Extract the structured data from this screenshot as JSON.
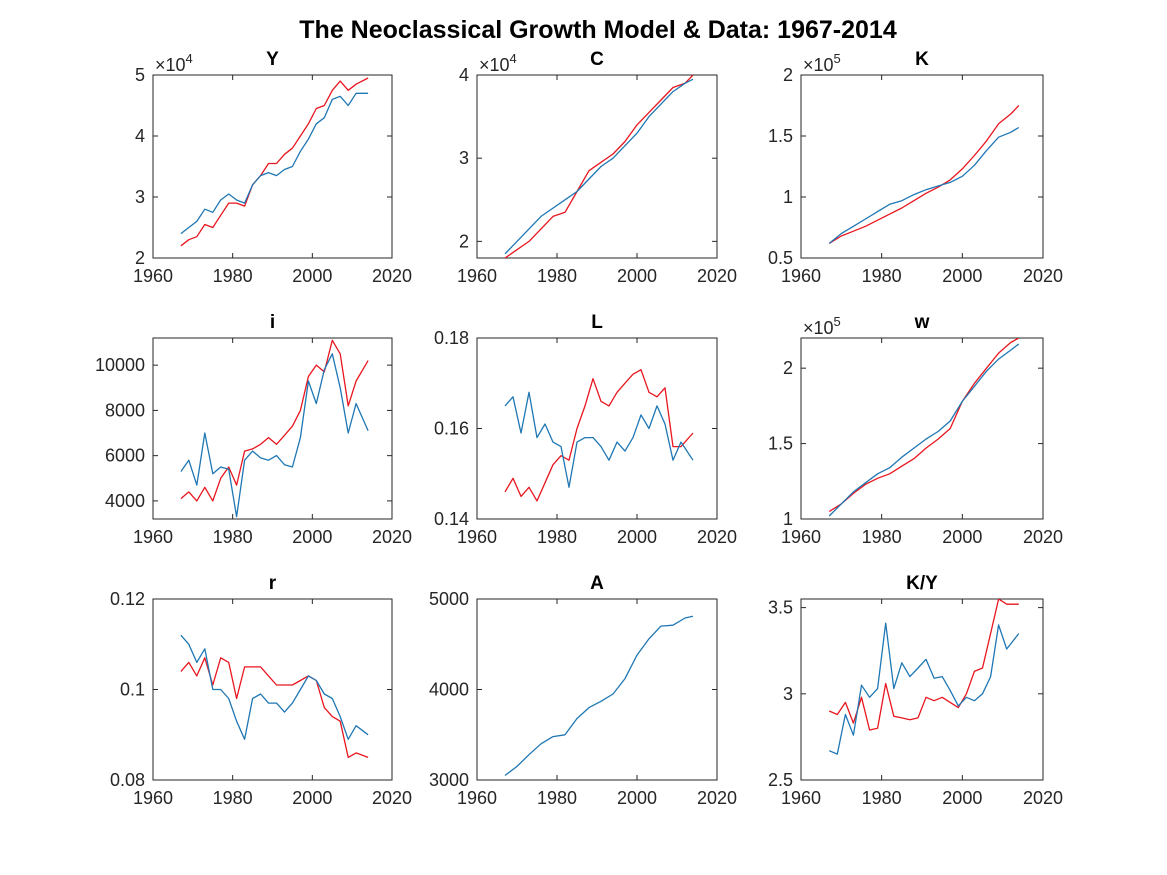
{
  "figure": {
    "title": "The Neoclassical Growth Model & Data: 1967-2014",
    "colors": {
      "model": "#e8161e",
      "data": "#1f77b4",
      "axis": "#262626"
    }
  },
  "chart_data": [
    {
      "type": "line",
      "title": "Y",
      "exponent": "4",
      "xlim": [
        1960,
        2020
      ],
      "ylim": [
        2,
        5
      ],
      "xticks": [
        "1960",
        "1980",
        "2000",
        "2020"
      ],
      "yticks": [
        "2",
        "3",
        "4",
        "5"
      ],
      "x": [
        1967,
        1969,
        1971,
        1973,
        1975,
        1977,
        1979,
        1981,
        1983,
        1985,
        1987,
        1989,
        1991,
        1993,
        1995,
        1997,
        1999,
        2001,
        2003,
        2005,
        2007,
        2009,
        2011,
        2014
      ],
      "series": [
        {
          "color": "#e8161e",
          "values": [
            2.2,
            2.3,
            2.35,
            2.55,
            2.5,
            2.7,
            2.9,
            2.9,
            2.85,
            3.2,
            3.35,
            3.55,
            3.55,
            3.7,
            3.8,
            4.0,
            4.2,
            4.45,
            4.5,
            4.75,
            4.9,
            4.75,
            4.85,
            4.95
          ]
        },
        {
          "color": "#1f77b4",
          "values": [
            2.4,
            2.5,
            2.6,
            2.8,
            2.75,
            2.95,
            3.05,
            2.95,
            2.9,
            3.2,
            3.35,
            3.4,
            3.35,
            3.45,
            3.5,
            3.75,
            3.95,
            4.2,
            4.3,
            4.6,
            4.65,
            4.5,
            4.7,
            4.7
          ]
        }
      ]
    },
    {
      "type": "line",
      "title": "C",
      "exponent": "4",
      "xlim": [
        1960,
        2020
      ],
      "ylim": [
        1.8,
        4
      ],
      "xticks": [
        "1960",
        "1980",
        "2000",
        "2020"
      ],
      "yticks": [
        "2",
        "3",
        "4"
      ],
      "x": [
        1967,
        1970,
        1973,
        1976,
        1979,
        1982,
        1985,
        1988,
        1991,
        1994,
        1997,
        2000,
        2003,
        2006,
        2009,
        2012,
        2014
      ],
      "series": [
        {
          "color": "#e8161e",
          "values": [
            1.8,
            1.9,
            2.0,
            2.15,
            2.3,
            2.35,
            2.6,
            2.85,
            2.95,
            3.05,
            3.2,
            3.4,
            3.55,
            3.7,
            3.85,
            3.9,
            4.0
          ]
        },
        {
          "color": "#1f77b4",
          "values": [
            1.85,
            2.0,
            2.15,
            2.3,
            2.4,
            2.5,
            2.6,
            2.75,
            2.9,
            3.0,
            3.15,
            3.3,
            3.5,
            3.65,
            3.8,
            3.9,
            3.95
          ]
        }
      ]
    },
    {
      "type": "line",
      "title": "K",
      "exponent": "5",
      "xlim": [
        1960,
        2020
      ],
      "ylim": [
        0.5,
        2
      ],
      "xticks": [
        "1960",
        "1980",
        "2000",
        "2020"
      ],
      "yticks": [
        "0.5",
        "1",
        "1.5",
        "2"
      ],
      "x": [
        1967,
        1970,
        1973,
        1976,
        1979,
        1982,
        1985,
        1988,
        1991,
        1994,
        1997,
        2000,
        2003,
        2006,
        2009,
        2012,
        2014
      ],
      "series": [
        {
          "color": "#e8161e",
          "values": [
            0.62,
            0.68,
            0.72,
            0.76,
            0.81,
            0.86,
            0.91,
            0.97,
            1.03,
            1.08,
            1.14,
            1.23,
            1.34,
            1.46,
            1.6,
            1.68,
            1.75
          ]
        },
        {
          "color": "#1f77b4",
          "values": [
            0.62,
            0.7,
            0.76,
            0.82,
            0.88,
            0.94,
            0.97,
            1.02,
            1.06,
            1.09,
            1.12,
            1.17,
            1.26,
            1.38,
            1.49,
            1.53,
            1.57
          ]
        }
      ]
    },
    {
      "type": "line",
      "title": "i",
      "exponent": "",
      "xlim": [
        1960,
        2020
      ],
      "ylim": [
        3200,
        11200
      ],
      "xticks": [
        "1960",
        "1980",
        "2000",
        "2020"
      ],
      "yticks": [
        "4000",
        "6000",
        "8000",
        "10000"
      ],
      "x": [
        1967,
        1969,
        1971,
        1973,
        1975,
        1977,
        1979,
        1981,
        1983,
        1985,
        1987,
        1989,
        1991,
        1993,
        1995,
        1997,
        1999,
        2001,
        2003,
        2005,
        2007,
        2009,
        2011,
        2014
      ],
      "series": [
        {
          "color": "#e8161e",
          "values": [
            4100,
            4400,
            4000,
            4600,
            4000,
            5000,
            5500,
            4700,
            6200,
            6300,
            6500,
            6800,
            6500,
            6900,
            7300,
            8000,
            9500,
            10000,
            9700,
            11100,
            10500,
            8200,
            9300,
            10200
          ]
        },
        {
          "color": "#1f77b4",
          "values": [
            5300,
            5800,
            4700,
            7000,
            5200,
            5500,
            5400,
            3300,
            5800,
            6200,
            5900,
            5800,
            6000,
            5600,
            5500,
            6800,
            9300,
            8300,
            9800,
            10500,
            9000,
            7000,
            8300,
            7100
          ]
        }
      ]
    },
    {
      "type": "line",
      "title": "L",
      "exponent": "",
      "xlim": [
        1960,
        2020
      ],
      "ylim": [
        0.14,
        0.18
      ],
      "xticks": [
        "1960",
        "1980",
        "2000",
        "2020"
      ],
      "yticks": [
        "0.14",
        "0.16",
        "0.18"
      ],
      "x": [
        1967,
        1969,
        1971,
        1973,
        1975,
        1977,
        1979,
        1981,
        1983,
        1985,
        1987,
        1989,
        1991,
        1993,
        1995,
        1997,
        1999,
        2001,
        2003,
        2005,
        2007,
        2009,
        2011,
        2014
      ],
      "series": [
        {
          "color": "#e8161e",
          "values": [
            0.146,
            0.149,
            0.145,
            0.147,
            0.144,
            0.148,
            0.152,
            0.154,
            0.153,
            0.16,
            0.165,
            0.171,
            0.166,
            0.165,
            0.168,
            0.17,
            0.172,
            0.173,
            0.168,
            0.167,
            0.169,
            0.156,
            0.156,
            0.159
          ]
        },
        {
          "color": "#1f77b4",
          "values": [
            0.165,
            0.167,
            0.159,
            0.168,
            0.158,
            0.161,
            0.157,
            0.156,
            0.147,
            0.157,
            0.158,
            0.158,
            0.156,
            0.153,
            0.157,
            0.155,
            0.158,
            0.163,
            0.16,
            0.165,
            0.161,
            0.153,
            0.157,
            0.153
          ]
        }
      ]
    },
    {
      "type": "line",
      "title": "w",
      "exponent": "5",
      "xlim": [
        1960,
        2020
      ],
      "ylim": [
        1,
        2.2
      ],
      "xticks": [
        "1960",
        "1980",
        "2000",
        "2020"
      ],
      "yticks": [
        "1",
        "1.5",
        "2"
      ],
      "x": [
        1967,
        1970,
        1973,
        1976,
        1979,
        1982,
        1985,
        1988,
        1991,
        1994,
        1997,
        2000,
        2003,
        2006,
        2009,
        2012,
        2014
      ],
      "series": [
        {
          "color": "#e8161e",
          "values": [
            1.05,
            1.1,
            1.17,
            1.23,
            1.27,
            1.3,
            1.35,
            1.4,
            1.47,
            1.53,
            1.6,
            1.78,
            1.9,
            2.0,
            2.1,
            2.17,
            2.2
          ]
        },
        {
          "color": "#1f77b4",
          "values": [
            1.02,
            1.1,
            1.18,
            1.24,
            1.3,
            1.34,
            1.41,
            1.47,
            1.53,
            1.58,
            1.65,
            1.78,
            1.88,
            1.98,
            2.06,
            2.12,
            2.16
          ]
        }
      ]
    },
    {
      "type": "line",
      "title": "r",
      "exponent": "",
      "xlim": [
        1960,
        2020
      ],
      "ylim": [
        0.08,
        0.12
      ],
      "xticks": [
        "1960",
        "1980",
        "2000",
        "2020"
      ],
      "yticks": [
        "0.08",
        "0.1",
        "0.12"
      ],
      "x": [
        1967,
        1969,
        1971,
        1973,
        1975,
        1977,
        1979,
        1981,
        1983,
        1985,
        1987,
        1989,
        1991,
        1993,
        1995,
        1997,
        1999,
        2001,
        2003,
        2005,
        2007,
        2009,
        2011,
        2014
      ],
      "series": [
        {
          "color": "#e8161e",
          "values": [
            0.104,
            0.106,
            0.103,
            0.107,
            0.101,
            0.107,
            0.106,
            0.098,
            0.105,
            0.105,
            0.105,
            0.103,
            0.101,
            0.101,
            0.101,
            0.102,
            0.103,
            0.102,
            0.096,
            0.094,
            0.093,
            0.085,
            0.086,
            0.085
          ]
        },
        {
          "color": "#1f77b4",
          "values": [
            0.112,
            0.11,
            0.106,
            0.109,
            0.1,
            0.1,
            0.098,
            0.093,
            0.089,
            0.098,
            0.099,
            0.097,
            0.097,
            0.095,
            0.097,
            0.1,
            0.103,
            0.102,
            0.099,
            0.098,
            0.094,
            0.089,
            0.092,
            0.09
          ]
        }
      ]
    },
    {
      "type": "line",
      "title": "A",
      "exponent": "",
      "xlim": [
        1960,
        2020
      ],
      "ylim": [
        3000,
        5000
      ],
      "xticks": [
        "1960",
        "1980",
        "2000",
        "2020"
      ],
      "yticks": [
        "3000",
        "4000",
        "5000"
      ],
      "x": [
        1967,
        1970,
        1973,
        1976,
        1979,
        1982,
        1985,
        1988,
        1991,
        1994,
        1997,
        2000,
        2003,
        2006,
        2009,
        2012,
        2014
      ],
      "series": [
        {
          "color": "#1f77b4",
          "values": [
            3050,
            3150,
            3280,
            3400,
            3480,
            3500,
            3680,
            3800,
            3870,
            3950,
            4120,
            4380,
            4560,
            4700,
            4710,
            4790,
            4810
          ]
        }
      ]
    },
    {
      "type": "line",
      "title": "K/Y",
      "exponent": "",
      "xlim": [
        1960,
        2020
      ],
      "ylim": [
        2.5,
        3.55
      ],
      "xticks": [
        "1960",
        "1980",
        "2000",
        "2020"
      ],
      "yticks": [
        "2.5",
        "3",
        "3.5"
      ],
      "x": [
        1967,
        1969,
        1971,
        1973,
        1975,
        1977,
        1979,
        1981,
        1983,
        1985,
        1987,
        1989,
        1991,
        1993,
        1995,
        1997,
        1999,
        2001,
        2003,
        2005,
        2007,
        2009,
        2011,
        2014
      ],
      "series": [
        {
          "color": "#e8161e",
          "values": [
            2.9,
            2.88,
            2.95,
            2.83,
            2.98,
            2.79,
            2.8,
            3.06,
            2.87,
            2.86,
            2.85,
            2.86,
            2.98,
            2.96,
            2.98,
            2.95,
            2.92,
            3.0,
            3.13,
            3.15,
            3.35,
            3.55,
            3.52,
            3.52
          ]
        },
        {
          "color": "#1f77b4",
          "values": [
            2.67,
            2.65,
            2.88,
            2.76,
            3.05,
            2.98,
            3.03,
            3.41,
            3.03,
            3.18,
            3.1,
            3.15,
            3.2,
            3.09,
            3.1,
            3.02,
            2.93,
            2.98,
            2.96,
            3.0,
            3.1,
            3.4,
            3.26,
            3.35
          ]
        }
      ]
    }
  ]
}
